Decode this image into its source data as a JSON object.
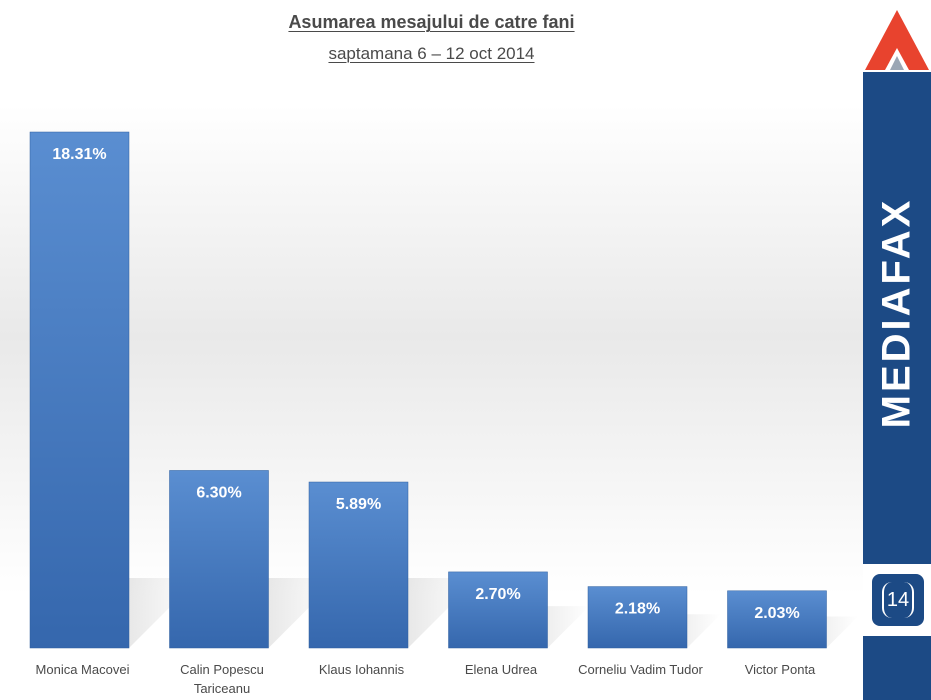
{
  "chart_data": {
    "type": "bar",
    "title": "Asumarea mesajului de catre fani",
    "subtitle": "saptamana 6 – 12 oct 2014",
    "categories": [
      [
        "Monica Macovei"
      ],
      [
        "Calin Popescu",
        "Tariceanu"
      ],
      [
        "Klaus Iohannis"
      ],
      [
        "Elena Udrea"
      ],
      [
        "Corneliu Vadim Tudor"
      ],
      [
        "Victor Ponta"
      ]
    ],
    "values": [
      18.31,
      6.3,
      5.89,
      2.7,
      2.18,
      2.03
    ],
    "data_labels": [
      "18.31%",
      "6.30%",
      "5.89%",
      "2.70%",
      "2.18%",
      "2.03%"
    ],
    "ylim": [
      0,
      18.31
    ],
    "grid": false,
    "legend": "none",
    "colors": {
      "bar_top": "#5a8ed1",
      "bar_bottom": "#3567ad",
      "label": "#ffffff",
      "axis_text": "#4a4a4a"
    }
  },
  "sidebar": {
    "brand": "MEDIAFAX",
    "page_number": "14",
    "logo_icon": "mediafax-triangle-logo",
    "colors": {
      "background": "#1c4a85",
      "logo_red": "#e8432e"
    }
  }
}
